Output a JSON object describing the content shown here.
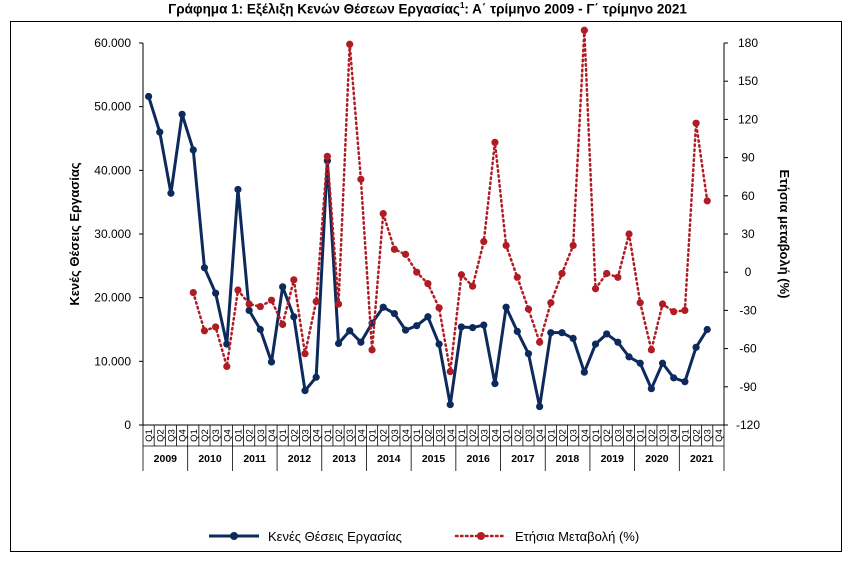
{
  "chart_data": {
    "type": "line",
    "title_main": "Γράφημα 1: Εξέλιξη Κενών Θέσεων Εργασίας",
    "title_sup": "1",
    "title_rest": ": Α΄ τρίμηνο 2009 - Γ΄ τρίμηνο 2021",
    "quarters": [
      "Q1",
      "Q2",
      "Q3",
      "Q4"
    ],
    "years": [
      "2009",
      "2010",
      "2011",
      "2012",
      "2013",
      "2014",
      "2015",
      "2016",
      "2017",
      "2018",
      "2019",
      "2020",
      "2021"
    ],
    "ylabel_left": "Κενές Θέσεις Εργασίας",
    "ylabel_right": "Ετήσια μεταβολή (%)",
    "ylim_left": [
      0,
      60000
    ],
    "ylim_right": [
      -120,
      180
    ],
    "yticks_left": [
      "0",
      "10.000",
      "20.000",
      "30.000",
      "40.000",
      "50.000",
      "60.000"
    ],
    "yticks_right": [
      "-120",
      "-90",
      "-60",
      "-30",
      "0",
      "30",
      "60",
      "90",
      "120",
      "150",
      "180"
    ],
    "series": [
      {
        "name": "Κενές Θέσεις Εργασίας",
        "axis": "left",
        "color": "#0d2a5c",
        "style": "solid",
        "values": [
          51600,
          46000,
          36400,
          48800,
          43200,
          24700,
          20700,
          12700,
          37000,
          18000,
          15000,
          9900,
          21700,
          17000,
          5400,
          7500,
          41500,
          12800,
          14800,
          13000,
          16000,
          18500,
          17500,
          14900,
          15600,
          17000,
          12700,
          3200,
          15400,
          15300,
          15700,
          6500,
          18500,
          14700,
          11200,
          2900,
          14500,
          14500,
          13600,
          8300,
          12700,
          14300,
          13000,
          10700,
          9700,
          5700,
          9700,
          7400,
          6800,
          12200,
          15000
        ]
      },
      {
        "name": "Ετήσια Μεταβολή (%)",
        "axis": "right",
        "color": "#b01c24",
        "style": "dotted",
        "values": [
          null,
          null,
          null,
          null,
          -16,
          -46,
          -43,
          -74,
          -14,
          -25,
          -27,
          -22,
          -41,
          -6,
          -64,
          -23,
          91,
          -25,
          179,
          73,
          -61,
          46,
          18,
          14,
          0,
          -9,
          -28,
          -78,
          -2,
          -11,
          24,
          102,
          21,
          -4,
          -29,
          -55,
          -24,
          -1,
          21,
          190,
          -13,
          -1,
          -4,
          30,
          -24,
          -61,
          -25,
          -31,
          -30,
          117,
          56
        ]
      }
    ]
  }
}
